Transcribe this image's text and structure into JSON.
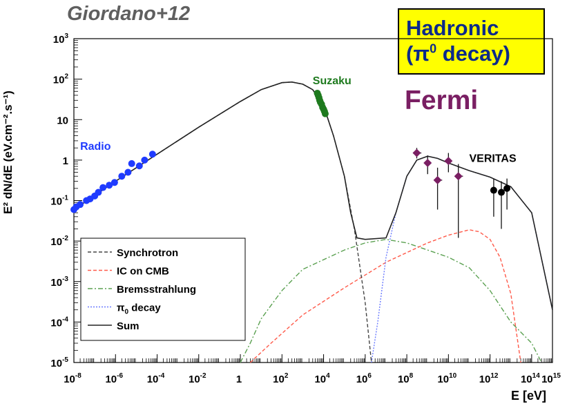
{
  "credit": "Giordano+12",
  "model_box": {
    "line1": "Hadronic",
    "line2_prefix": "(π",
    "line2_sup": "0",
    "line2_suffix": " decay)"
  },
  "fermi_label": "Fermi",
  "colors": {
    "radio": "#1f3bff",
    "suzaku": "#1e7a1e",
    "fermi": "#7a1f63",
    "veritas": "#000000",
    "synchrotron": "#444444",
    "ic": "#ff5a4a",
    "brems": "#5aa050",
    "pi0": "#6a7aff",
    "sum": "#222222",
    "box_fill": "#ffff00",
    "box_text": "#0c2a8a"
  },
  "chart_data": {
    "type": "scatter",
    "xlabel": "E [eV]",
    "ylabel": "E² dN/dE (eV.cm⁻².s⁻¹)",
    "x_scale": "log",
    "y_scale": "log",
    "xlim": [
      1e-08,
      1000000000000000.0
    ],
    "ylim": [
      1e-05,
      1000.0
    ],
    "x_ticks": [
      {
        "v": 1e-08,
        "b": "10",
        "e": "-8"
      },
      {
        "v": 1e-06,
        "b": "10",
        "e": "-6"
      },
      {
        "v": 0.0001,
        "b": "10",
        "e": "-4"
      },
      {
        "v": 0.01,
        "b": "10",
        "e": "-2"
      },
      {
        "v": 1,
        "b": "1",
        "e": ""
      },
      {
        "v": 100.0,
        "b": "10",
        "e": "2"
      },
      {
        "v": 10000.0,
        "b": "10",
        "e": "4"
      },
      {
        "v": 1000000.0,
        "b": "10",
        "e": "6"
      },
      {
        "v": 100000000.0,
        "b": "10",
        "e": "8"
      },
      {
        "v": 10000000000.0,
        "b": "10",
        "e": "10"
      },
      {
        "v": 1000000000000.0,
        "b": "10",
        "e": "12"
      },
      {
        "v": 100000000000000.0,
        "b": "10",
        "e": "14"
      },
      {
        "v": 1000000000000000.0,
        "b": "10",
        "e": "15"
      }
    ],
    "y_ticks": [
      {
        "v": 1e-05,
        "b": "10",
        "e": "-5"
      },
      {
        "v": 0.0001,
        "b": "10",
        "e": "-4"
      },
      {
        "v": 0.001,
        "b": "10",
        "e": "-3"
      },
      {
        "v": 0.01,
        "b": "10",
        "e": "-2"
      },
      {
        "v": 0.1,
        "b": "10",
        "e": "-1"
      },
      {
        "v": 1,
        "b": "1",
        "e": ""
      },
      {
        "v": 10,
        "b": "10",
        "e": ""
      },
      {
        "v": 100,
        "b": "10",
        "e": "2"
      },
      {
        "v": 1000,
        "b": "10",
        "e": "3"
      }
    ],
    "grid": false,
    "legend_position": "bottom-left",
    "legend": [
      {
        "label": "Synchrotron",
        "style": "synchrotron"
      },
      {
        "label": "IC on CMB",
        "style": "ic"
      },
      {
        "label": "Bremsstrahlung",
        "style": "brems"
      },
      {
        "label_main": "π",
        "label_sub": "0",
        "label_rest": " decay",
        "style": "pi0"
      },
      {
        "label": "Sum",
        "style": "sum"
      }
    ],
    "annotations": [
      {
        "text": "Radio",
        "x": 2e-08,
        "y": 1.8,
        "color": "radio"
      },
      {
        "text": "Suzaku",
        "x": 3000.0,
        "y": 75,
        "color": "suzaku"
      },
      {
        "text": "VERITAS",
        "x": 100000000000.0,
        "y": 0.9,
        "color": "veritas"
      }
    ],
    "series": [
      {
        "name": "Radio",
        "marker": "circle",
        "color": "radio",
        "points": [
          [
            1e-08,
            0.06
          ],
          [
            1.3e-08,
            0.07
          ],
          [
            2e-08,
            0.08
          ],
          [
            4e-08,
            0.1
          ],
          [
            6e-08,
            0.11
          ],
          [
            1e-07,
            0.13
          ],
          [
            1.5e-07,
            0.16
          ],
          [
            2.5e-07,
            0.21
          ],
          [
            5e-07,
            0.24
          ],
          [
            9e-07,
            0.28
          ],
          [
            2e-06,
            0.4
          ],
          [
            4e-06,
            0.5
          ],
          [
            6e-06,
            0.82
          ],
          [
            1.4e-05,
            0.72
          ],
          [
            2.5e-05,
            1.0
          ],
          [
            6e-05,
            1.4
          ]
        ]
      },
      {
        "name": "Suzaku",
        "marker": "circle",
        "color": "suzaku",
        "points": [
          [
            5000.0,
            45
          ],
          [
            5500.0,
            40
          ],
          [
            6000.0,
            35
          ],
          [
            6500.0,
            30
          ],
          [
            7000.0,
            27
          ],
          [
            8000.0,
            24
          ],
          [
            9000.0,
            20
          ],
          [
            10000.0,
            18
          ],
          [
            11000.0,
            16
          ],
          [
            12000.0,
            14
          ]
        ]
      },
      {
        "name": "Fermi",
        "marker": "diamond",
        "color": "fermi",
        "points": [
          {
            "x": 300000000.0,
            "y": 1.5,
            "xlo": 200000000.0,
            "xhi": 500000000.0,
            "ylo": 1.1,
            "yhi": 2.0
          },
          {
            "x": 1000000000.0,
            "y": 0.85,
            "xlo": 700000000.0,
            "xhi": 1500000000.0,
            "ylo": 0.45,
            "yhi": 1.3
          },
          {
            "x": 3000000000.0,
            "y": 0.32,
            "xlo": 2000000000.0,
            "xhi": 5000000000.0,
            "ylo": 0.06,
            "yhi": 0.65
          },
          {
            "x": 10000000000.0,
            "y": 0.95,
            "xlo": 7000000000.0,
            "xhi": 15000000000.0,
            "ylo": 0.5,
            "yhi": 1.5
          },
          {
            "x": 30000000000.0,
            "y": 0.4,
            "xlo": 20000000000.0,
            "xhi": 50000000000.0,
            "ylo": 0.012,
            "yhi": 0.8
          }
        ]
      },
      {
        "name": "VERITAS",
        "marker": "circle",
        "color": "veritas",
        "points": [
          {
            "x": 1500000000000.0,
            "y": 0.18,
            "ylo": 0.04,
            "yhi": 0.35
          },
          {
            "x": 3500000000000.0,
            "y": 0.16,
            "ylo": 0.02,
            "yhi": 0.3
          },
          {
            "x": 6500000000000.0,
            "y": 0.2,
            "ylo": 0.06,
            "yhi": 0.35
          }
        ]
      },
      {
        "name": "Synchrotron",
        "line": "synchrotron",
        "points": [
          [
            1e-08,
            0.06
          ],
          [
            1e-06,
            0.3
          ],
          [
            0.0001,
            1.4
          ],
          [
            0.01,
            6.5
          ],
          [
            1,
            28
          ],
          [
            10,
            55
          ],
          [
            100,
            82
          ],
          [
            300,
            85
          ],
          [
            1000.0,
            75
          ],
          [
            3000.0,
            55
          ],
          [
            10000.0,
            22
          ],
          [
            30000.0,
            4
          ],
          [
            100000.0,
            0.4
          ],
          [
            300000.0,
            0.02
          ],
          [
            1000000.0,
            0.0003
          ],
          [
            2000000.0,
            1e-05
          ]
        ]
      },
      {
        "name": "IC on CMB",
        "line": "ic",
        "points": [
          [
            3,
            1e-05
          ],
          [
            30,
            3e-05
          ],
          [
            1000.0,
            0.00015
          ],
          [
            100000.0,
            0.0007
          ],
          [
            10000000.0,
            0.003
          ],
          [
            1000000000.0,
            0.009
          ],
          [
            10000000000.0,
            0.014
          ],
          [
            100000000000.0,
            0.019
          ],
          [
            300000000000.0,
            0.017
          ],
          [
            1000000000000.0,
            0.011
          ],
          [
            3000000000000.0,
            0.004
          ],
          [
            10000000000000.0,
            0.0005
          ],
          [
            30000000000000.0,
            1e-05
          ]
        ]
      },
      {
        "name": "Bremsstrahlung",
        "line": "brems",
        "points": [
          [
            1,
            1e-05
          ],
          [
            3,
            3e-05
          ],
          [
            10,
            0.00012
          ],
          [
            100,
            0.0006
          ],
          [
            1000.0,
            0.002
          ],
          [
            100000.0,
            0.006
          ],
          [
            1000000.0,
            0.009
          ],
          [
            10000000.0,
            0.011
          ],
          [
            100000000.0,
            0.009
          ],
          [
            1000000000.0,
            0.006
          ],
          [
            10000000000.0,
            0.004
          ],
          [
            100000000000.0,
            0.0022
          ],
          [
            1000000000000.0,
            0.0006
          ],
          [
            10000000000000.0,
            0.0001
          ],
          [
            100000000000000.0,
            3e-05
          ],
          [
            300000000000000.0,
            1e-05
          ]
        ]
      },
      {
        "name": "π0 decay",
        "line": "pi0",
        "points": [
          [
            2000000.0,
            1e-05
          ],
          [
            4000000.0,
            0.0001
          ],
          [
            10000000.0,
            0.004
          ],
          [
            30000000.0,
            0.05
          ],
          [
            100000000.0,
            0.4
          ],
          [
            300000000.0,
            1.0
          ],
          [
            1000000000.0,
            1.25
          ],
          [
            3000000000.0,
            1.1
          ],
          [
            10000000000.0,
            0.85
          ],
          [
            100000000000.0,
            0.55
          ],
          [
            1000000000000.0,
            0.38
          ],
          [
            10000000000000.0,
            0.22
          ],
          [
            100000000000000.0,
            0.05
          ],
          [
            1000000000000000.0,
            0.0002
          ]
        ]
      },
      {
        "name": "Sum",
        "line": "sum",
        "points": [
          [
            1e-08,
            0.06
          ],
          [
            1e-06,
            0.3
          ],
          [
            0.0001,
            1.4
          ],
          [
            0.01,
            6.5
          ],
          [
            1,
            28
          ],
          [
            10,
            55
          ],
          [
            100,
            82
          ],
          [
            300,
            85
          ],
          [
            1000.0,
            75
          ],
          [
            3000.0,
            55
          ],
          [
            10000.0,
            22
          ],
          [
            30000.0,
            4
          ],
          [
            100000.0,
            0.4
          ],
          [
            200000.0,
            0.05
          ],
          [
            400000.0,
            0.012
          ],
          [
            1000000.0,
            0.011
          ],
          [
            10000000.0,
            0.012
          ],
          [
            30000000.0,
            0.05
          ],
          [
            100000000.0,
            0.4
          ],
          [
            300000000.0,
            1.0
          ],
          [
            1000000000.0,
            1.25
          ],
          [
            3000000000.0,
            1.1
          ],
          [
            10000000000.0,
            0.85
          ],
          [
            100000000000.0,
            0.55
          ],
          [
            1000000000000.0,
            0.38
          ],
          [
            10000000000000.0,
            0.22
          ],
          [
            100000000000000.0,
            0.05
          ],
          [
            1000000000000000.0,
            0.0002
          ]
        ]
      }
    ]
  }
}
